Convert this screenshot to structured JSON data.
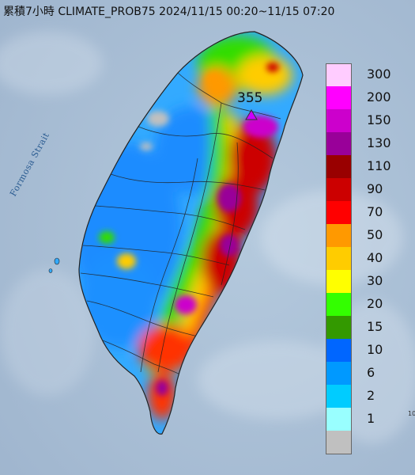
{
  "title": "累積7小時 CLIMATE_PROB75 2024/11/15 00:20~11/15 07:20",
  "strait_label": "Formosa Strait",
  "peak": {
    "value": "355"
  },
  "legend": {
    "items": [
      {
        "label": "300",
        "color": "#ffccff"
      },
      {
        "label": "200",
        "color": "#ff00ff"
      },
      {
        "label": "150",
        "color": "#cc00cc"
      },
      {
        "label": "130",
        "color": "#990099"
      },
      {
        "label": "110",
        "color": "#990000"
      },
      {
        "label": "90",
        "color": "#cc0000"
      },
      {
        "label": "70",
        "color": "#ff0000"
      },
      {
        "label": "50",
        "color": "#ff9900"
      },
      {
        "label": "40",
        "color": "#ffcc00"
      },
      {
        "label": "30",
        "color": "#ffff00"
      },
      {
        "label": "20",
        "color": "#33ff00"
      },
      {
        "label": "15",
        "color": "#339900"
      },
      {
        "label": "10",
        "color": "#0066ff"
      },
      {
        "label": "6",
        "color": "#0099ff"
      },
      {
        "label": "2",
        "color": "#00ccff"
      },
      {
        "label": "1",
        "color": "#99ffff"
      },
      {
        "label": "",
        "color": "#c0c0c0"
      }
    ]
  },
  "colors": {
    "sea": "#a9bfd6",
    "outline": "#222222"
  },
  "partial_label": "10"
}
